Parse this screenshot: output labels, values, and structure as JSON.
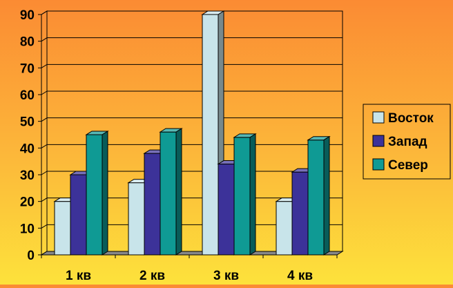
{
  "chart_data": {
    "type": "bar",
    "categories": [
      "1 кв",
      "2 кв",
      "3 кв",
      "4 кв"
    ],
    "series": [
      {
        "name": "Восток",
        "values": [
          20,
          27,
          90,
          20
        ],
        "color": "#c8e4ea"
      },
      {
        "name": "Запад",
        "values": [
          30,
          38,
          34,
          31
        ],
        "color": "#3c3299"
      },
      {
        "name": "Север",
        "values": [
          45,
          46,
          44,
          43
        ],
        "color": "#0f9a94"
      }
    ],
    "yticks": [
      "0",
      "10",
      "20",
      "30",
      "40",
      "50",
      "60",
      "70",
      "80",
      "90"
    ],
    "ylim": [
      0,
      90
    ],
    "grid": true,
    "legend": "right",
    "style": "3d-clustered-column"
  }
}
